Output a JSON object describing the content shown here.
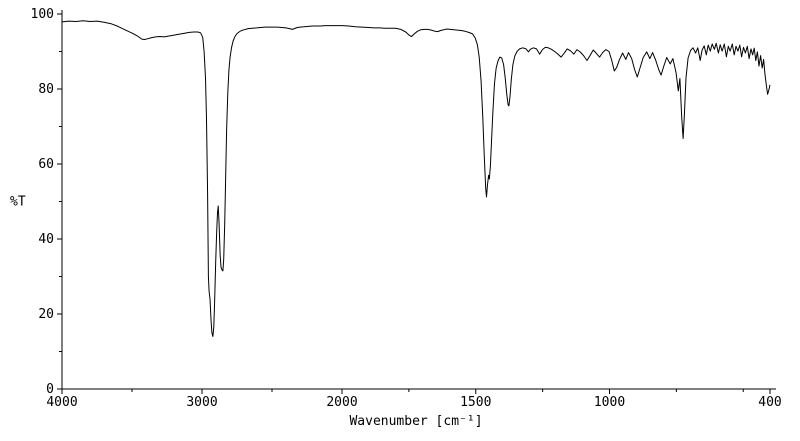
{
  "page": {
    "background": "#ffffff"
  },
  "chart_data": {
    "type": "line",
    "title": "",
    "xlabel": "Wavenumber [cm⁻¹]",
    "ylabel": "%T",
    "line_color": "#000000",
    "axis_color": "#000000",
    "x_axis": {
      "max": 4000,
      "min": 400,
      "break": 2000,
      "break_fraction": 0.3955,
      "ticks": [
        {
          "value": 4000,
          "label": "4000"
        },
        {
          "value": 3000,
          "label": "3000"
        },
        {
          "value": 2000,
          "label": "2000"
        },
        {
          "value": 1500,
          "label": "1500"
        },
        {
          "value": 1000,
          "label": "1000"
        },
        {
          "value": 400,
          "label": "400"
        }
      ],
      "minor_ticks": [
        3500,
        2500,
        1750,
        1250,
        750,
        500
      ]
    },
    "y_axis": {
      "min": 0,
      "max": 100,
      "ticks": [
        {
          "value": 0,
          "label": "0"
        },
        {
          "value": 20,
          "label": "20"
        },
        {
          "value": 40,
          "label": "40"
        },
        {
          "value": 60,
          "label": "60"
        },
        {
          "value": 80,
          "label": "80"
        },
        {
          "value": 100,
          "label": "100"
        }
      ],
      "minor_ticks": [
        10,
        30,
        50,
        70,
        90
      ]
    },
    "points": [
      [
        4000,
        97.9
      ],
      [
        3950,
        98.1
      ],
      [
        3900,
        98.0
      ],
      [
        3850,
        98.2
      ],
      [
        3800,
        98.0
      ],
      [
        3750,
        98.1
      ],
      [
        3700,
        97.8
      ],
      [
        3650,
        97.4
      ],
      [
        3600,
        96.7
      ],
      [
        3550,
        95.8
      ],
      [
        3500,
        94.9
      ],
      [
        3460,
        94.1
      ],
      [
        3430,
        93.3
      ],
      [
        3410,
        93.2
      ],
      [
        3390,
        93.4
      ],
      [
        3360,
        93.7
      ],
      [
        3330,
        93.9
      ],
      [
        3300,
        94.0
      ],
      [
        3270,
        93.9
      ],
      [
        3240,
        94.1
      ],
      [
        3210,
        94.3
      ],
      [
        3180,
        94.5
      ],
      [
        3150,
        94.7
      ],
      [
        3120,
        94.9
      ],
      [
        3090,
        95.1
      ],
      [
        3060,
        95.2
      ],
      [
        3030,
        95.2
      ],
      [
        3010,
        95.0
      ],
      [
        2995,
        93.8
      ],
      [
        2985,
        90.0
      ],
      [
        2975,
        83.0
      ],
      [
        2968,
        72.0
      ],
      [
        2960,
        52.0
      ],
      [
        2954,
        30.0
      ],
      [
        2949,
        26.0
      ],
      [
        2943,
        24.0
      ],
      [
        2936,
        18.5
      ],
      [
        2929,
        15.0
      ],
      [
        2922,
        14.0
      ],
      [
        2916,
        16.5
      ],
      [
        2909,
        24.0
      ],
      [
        2902,
        34.0
      ],
      [
        2895,
        42.0
      ],
      [
        2889,
        47.0
      ],
      [
        2884,
        48.8
      ],
      [
        2878,
        44.0
      ],
      [
        2871,
        36.0
      ],
      [
        2864,
        32.5
      ],
      [
        2857,
        31.8
      ],
      [
        2851,
        31.5
      ],
      [
        2845,
        34.5
      ],
      [
        2838,
        44.0
      ],
      [
        2831,
        57.0
      ],
      [
        2824,
        69.0
      ],
      [
        2816,
        79.0
      ],
      [
        2808,
        85.0
      ],
      [
        2799,
        88.5
      ],
      [
        2789,
        91.0
      ],
      [
        2778,
        92.8
      ],
      [
        2766,
        93.9
      ],
      [
        2752,
        94.7
      ],
      [
        2736,
        95.2
      ],
      [
        2718,
        95.6
      ],
      [
        2700,
        95.8
      ],
      [
        2670,
        96.1
      ],
      [
        2640,
        96.2
      ],
      [
        2610,
        96.3
      ],
      [
        2580,
        96.4
      ],
      [
        2550,
        96.5
      ],
      [
        2520,
        96.5
      ],
      [
        2490,
        96.5
      ],
      [
        2460,
        96.5
      ],
      [
        2430,
        96.4
      ],
      [
        2400,
        96.3
      ],
      [
        2375,
        96.1
      ],
      [
        2355,
        95.9
      ],
      [
        2340,
        96.1
      ],
      [
        2320,
        96.4
      ],
      [
        2300,
        96.5
      ],
      [
        2270,
        96.6
      ],
      [
        2240,
        96.7
      ],
      [
        2210,
        96.8
      ],
      [
        2180,
        96.8
      ],
      [
        2150,
        96.8
      ],
      [
        2120,
        96.9
      ],
      [
        2090,
        96.9
      ],
      [
        2060,
        96.9
      ],
      [
        2030,
        96.9
      ],
      [
        2000,
        96.9
      ],
      [
        1975,
        96.8
      ],
      [
        1950,
        96.6
      ],
      [
        1925,
        96.5
      ],
      [
        1900,
        96.4
      ],
      [
        1880,
        96.3
      ],
      [
        1860,
        96.3
      ],
      [
        1840,
        96.2
      ],
      [
        1820,
        96.2
      ],
      [
        1800,
        96.2
      ],
      [
        1780,
        95.9
      ],
      [
        1762,
        95.2
      ],
      [
        1748,
        94.3
      ],
      [
        1740,
        94.0
      ],
      [
        1730,
        94.7
      ],
      [
        1718,
        95.4
      ],
      [
        1706,
        95.8
      ],
      [
        1694,
        95.9
      ],
      [
        1680,
        95.9
      ],
      [
        1666,
        95.7
      ],
      [
        1652,
        95.4
      ],
      [
        1642,
        95.3
      ],
      [
        1632,
        95.6
      ],
      [
        1620,
        95.8
      ],
      [
        1608,
        96.0
      ],
      [
        1596,
        95.9
      ],
      [
        1582,
        95.8
      ],
      [
        1568,
        95.7
      ],
      [
        1554,
        95.6
      ],
      [
        1540,
        95.4
      ],
      [
        1526,
        95.1
      ],
      [
        1512,
        94.7
      ],
      [
        1502,
        93.6
      ],
      [
        1494,
        91.8
      ],
      [
        1487,
        88.5
      ],
      [
        1480,
        82.0
      ],
      [
        1474,
        73.0
      ],
      [
        1468,
        62.0
      ],
      [
        1463,
        53.5
      ],
      [
        1460,
        51.2
      ],
      [
        1456,
        54.5
      ],
      [
        1452,
        57.0
      ],
      [
        1449,
        56.0
      ],
      [
        1445,
        60.0
      ],
      [
        1441,
        66.0
      ],
      [
        1436,
        74.0
      ],
      [
        1430,
        81.5
      ],
      [
        1424,
        85.5
      ],
      [
        1417,
        87.5
      ],
      [
        1410,
        88.5
      ],
      [
        1403,
        88.3
      ],
      [
        1396,
        86.5
      ],
      [
        1390,
        83.0
      ],
      [
        1384,
        78.5
      ],
      [
        1379,
        75.8
      ],
      [
        1376,
        75.5
      ],
      [
        1372,
        78.0
      ],
      [
        1367,
        82.5
      ],
      [
        1361,
        86.5
      ],
      [
        1354,
        88.8
      ],
      [
        1346,
        90.0
      ],
      [
        1336,
        90.7
      ],
      [
        1324,
        91.0
      ],
      [
        1312,
        90.7
      ],
      [
        1303,
        89.9
      ],
      [
        1296,
        90.6
      ],
      [
        1285,
        91.0
      ],
      [
        1273,
        90.7
      ],
      [
        1261,
        89.3
      ],
      [
        1251,
        90.5
      ],
      [
        1240,
        91.1
      ],
      [
        1229,
        91.0
      ],
      [
        1217,
        90.6
      ],
      [
        1205,
        90.0
      ],
      [
        1193,
        89.3
      ],
      [
        1181,
        88.5
      ],
      [
        1170,
        89.5
      ],
      [
        1158,
        90.7
      ],
      [
        1146,
        90.2
      ],
      [
        1133,
        89.3
      ],
      [
        1122,
        90.5
      ],
      [
        1110,
        89.9
      ],
      [
        1097,
        88.9
      ],
      [
        1084,
        87.6
      ],
      [
        1073,
        88.9
      ],
      [
        1061,
        90.4
      ],
      [
        1049,
        89.5
      ],
      [
        1037,
        88.5
      ],
      [
        1026,
        89.7
      ],
      [
        1014,
        90.5
      ],
      [
        1002,
        90.0
      ],
      [
        992,
        87.8
      ],
      [
        982,
        84.8
      ],
      [
        973,
        85.8
      ],
      [
        963,
        87.8
      ],
      [
        951,
        89.6
      ],
      [
        939,
        87.9
      ],
      [
        929,
        89.7
      ],
      [
        917,
        88.1
      ],
      [
        906,
        85.2
      ],
      [
        896,
        83.2
      ],
      [
        886,
        85.6
      ],
      [
        874,
        88.4
      ],
      [
        861,
        89.9
      ],
      [
        849,
        88.1
      ],
      [
        839,
        89.7
      ],
      [
        827,
        87.6
      ],
      [
        816,
        85.2
      ],
      [
        807,
        83.7
      ],
      [
        797,
        86.1
      ],
      [
        786,
        88.4
      ],
      [
        773,
        86.7
      ],
      [
        763,
        88.1
      ],
      [
        751,
        84.3
      ],
      [
        743,
        79.5
      ],
      [
        737,
        82.8
      ],
      [
        730,
        72.5
      ],
      [
        725,
        66.8
      ],
      [
        720,
        73.2
      ],
      [
        714,
        83.0
      ],
      [
        706,
        88.3
      ],
      [
        697,
        90.3
      ],
      [
        688,
        91.0
      ],
      [
        678,
        89.6
      ],
      [
        670,
        91.0
      ],
      [
        661,
        87.6
      ],
      [
        654,
        90.4
      ],
      [
        646,
        91.5
      ],
      [
        638,
        89.1
      ],
      [
        631,
        91.7
      ],
      [
        623,
        90.1
      ],
      [
        616,
        92.0
      ],
      [
        608,
        90.6
      ],
      [
        601,
        92.2
      ],
      [
        593,
        89.6
      ],
      [
        586,
        91.8
      ],
      [
        579,
        90.1
      ],
      [
        571,
        92.0
      ],
      [
        563,
        88.6
      ],
      [
        556,
        91.4
      ],
      [
        549,
        90.1
      ],
      [
        541,
        92.0
      ],
      [
        534,
        89.1
      ],
      [
        527,
        91.4
      ],
      [
        520,
        90.1
      ],
      [
        513,
        91.7
      ],
      [
        506,
        88.6
      ],
      [
        499,
        91.1
      ],
      [
        492,
        89.6
      ],
      [
        485,
        91.4
      ],
      [
        478,
        88.1
      ],
      [
        471,
        90.7
      ],
      [
        465,
        89.1
      ],
      [
        459,
        90.9
      ],
      [
        453,
        87.6
      ],
      [
        447,
        89.9
      ],
      [
        441,
        86.1
      ],
      [
        435,
        88.9
      ],
      [
        429,
        85.6
      ],
      [
        424,
        87.9
      ],
      [
        419,
        84.1
      ],
      [
        414,
        81.1
      ],
      [
        409,
        78.6
      ],
      [
        405,
        79.6
      ],
      [
        400,
        81.1
      ]
    ]
  }
}
